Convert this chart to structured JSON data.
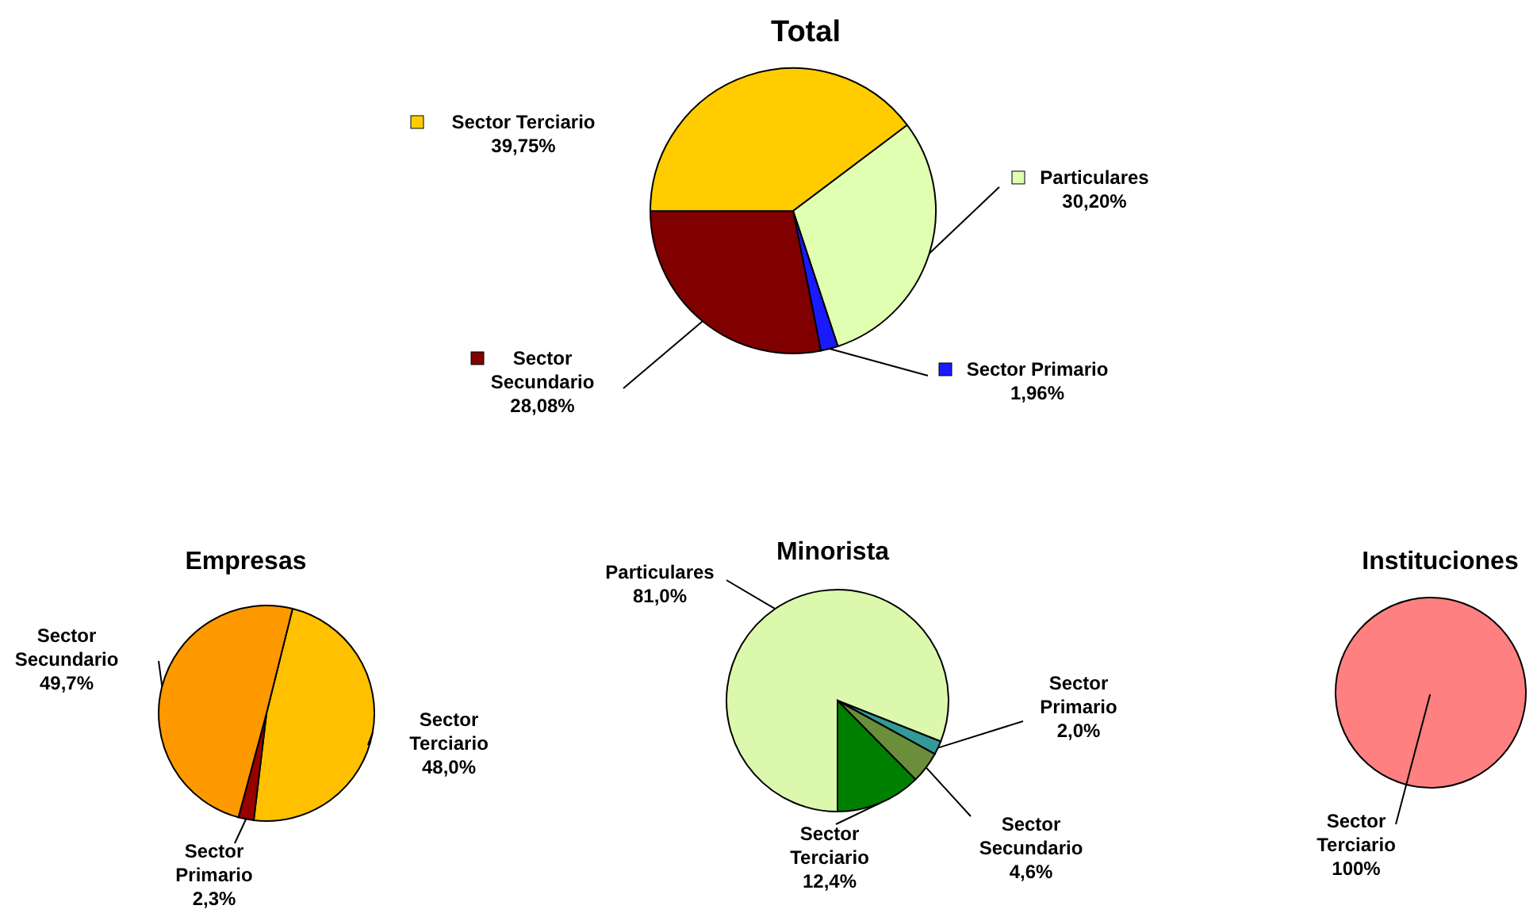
{
  "chart_data": [
    {
      "type": "pie",
      "title": "Total",
      "categories": [
        "Particulares",
        "Sector Primario",
        "Sector Secundario",
        "Sector Terciario"
      ],
      "values": [
        30.2,
        1.96,
        28.08,
        39.75
      ],
      "value_labels": [
        "30,20%",
        "1,96%",
        "28,08%",
        "39,75%"
      ],
      "colors": [
        "#e0ffb0",
        "#1a1aff",
        "#800000",
        "#ffcc00"
      ],
      "legend": "bottom left"
    },
    {
      "type": "pie",
      "title": "Empresas",
      "categories": [
        "Sector Terciario",
        "Sector Primario",
        "Sector Secundario"
      ],
      "values": [
        48.0,
        2.3,
        49.7
      ],
      "value_labels": [
        "48,0%",
        "2,3%",
        "49,7%"
      ],
      "colors": [
        "#ffc000",
        "#990000",
        "#ff9900"
      ]
    },
    {
      "type": "pie",
      "title": "Minorista",
      "categories": [
        "Particulares",
        "Sector Primario",
        "Sector Secundario",
        "Sector Terciario"
      ],
      "values": [
        81.0,
        2.0,
        4.6,
        12.4
      ],
      "value_labels": [
        "81,0%",
        "2,0%",
        "4,6%",
        "12,4%"
      ],
      "colors": [
        "#dcf8ad",
        "#339999",
        "#6b8e3a",
        "#008000"
      ]
    },
    {
      "type": "pie",
      "title": "Instituciones",
      "categories": [
        "Sector Terciario"
      ],
      "values": [
        100
      ],
      "value_labels": [
        "100%"
      ],
      "colors": [
        "#ff8080"
      ]
    }
  ]
}
